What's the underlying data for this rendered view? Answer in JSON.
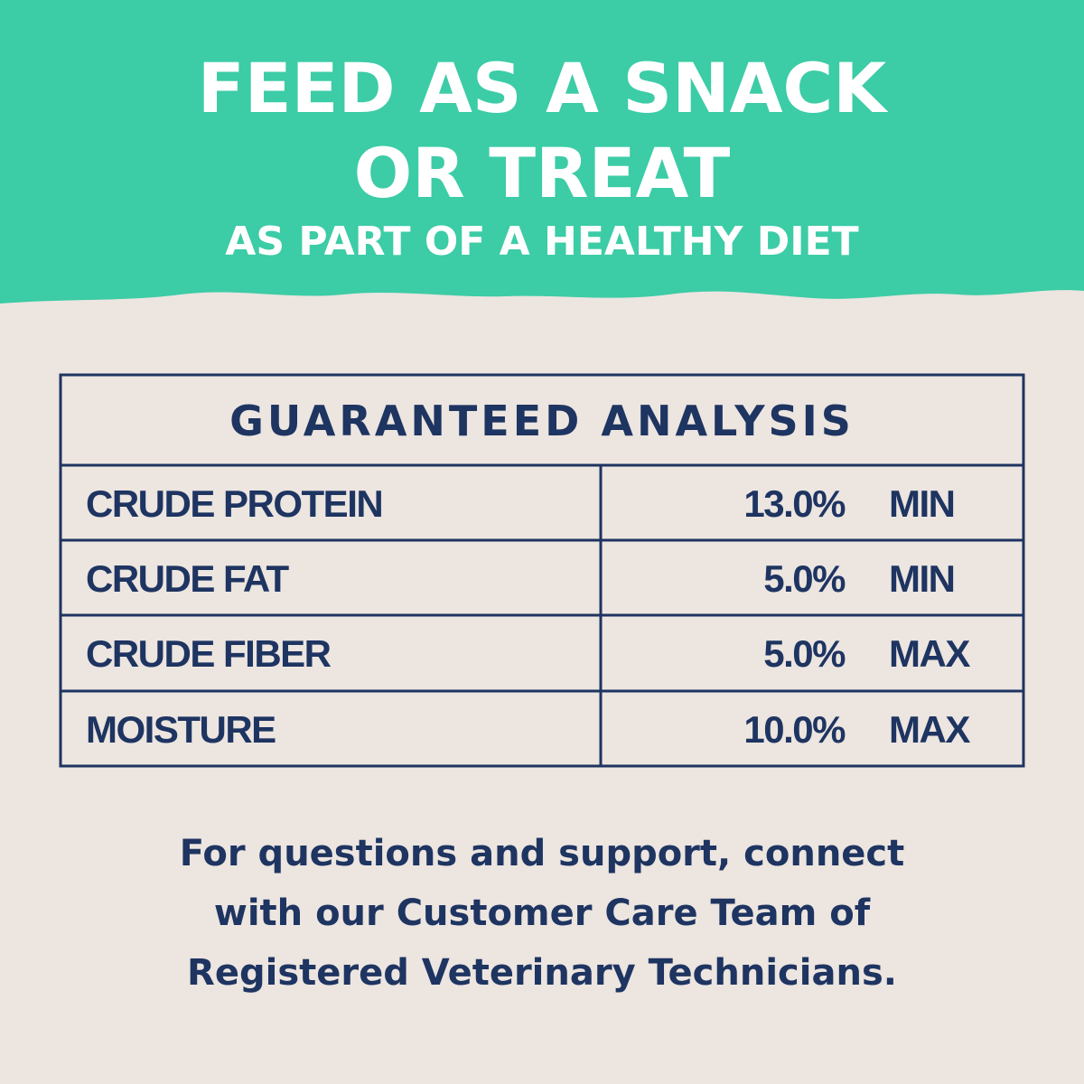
{
  "header": {
    "title_lines": [
      "FEED AS A SNACK",
      "OR TREAT"
    ],
    "subtitle": "AS PART OF A HEALTHY DIET"
  },
  "table": {
    "title": "GUARANTEED ANALYSIS",
    "rows": [
      [
        "CRUDE PROTEIN",
        "13.0%",
        "MIN"
      ],
      [
        "CRUDE FAT",
        "5.0%",
        "MIN"
      ],
      [
        "CRUDE FIBER",
        "5.0%",
        "MAX"
      ],
      [
        "MOISTURE",
        "10.0%",
        "MAX"
      ]
    ]
  },
  "footer": {
    "lines": [
      "For questions and support, connect",
      "with our Customer Care Team of",
      "Registered Veterinary Technicians."
    ]
  }
}
